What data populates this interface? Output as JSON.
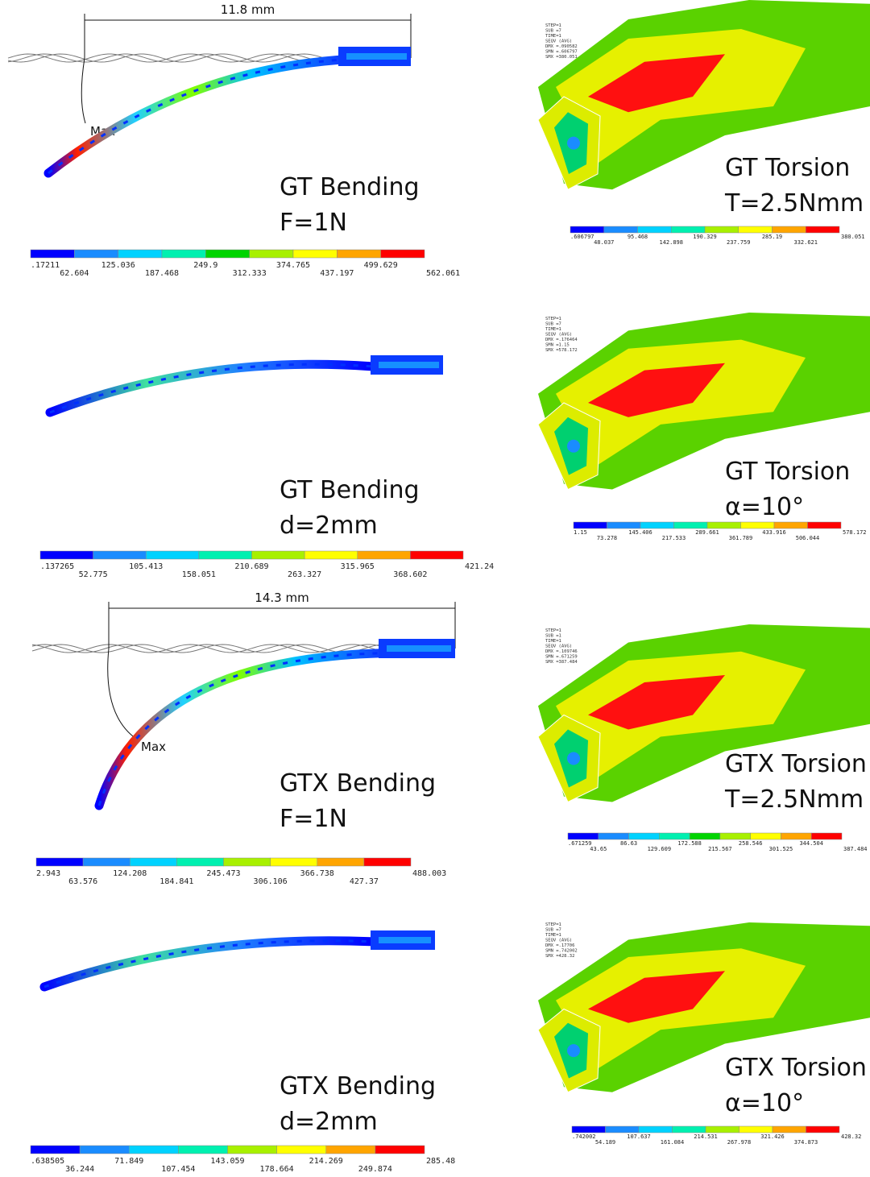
{
  "bending": [
    {
      "title": "GT Bending",
      "load": "F=1N",
      "dimension": "11.8 mm",
      "max_label": "Max",
      "legend": [
        ".17211",
        "62.604",
        "125.036",
        "187.468",
        "249.9",
        "312.333",
        "374.765",
        "437.197",
        "499.629",
        "562.061"
      ]
    },
    {
      "title": "GT Bending",
      "load": "d=2mm",
      "legend": [
        ".137265",
        "52.775",
        "105.413",
        "158.051",
        "210.689",
        "263.327",
        "315.965",
        "368.602",
        "421.24"
      ]
    },
    {
      "title": "GTX Bending",
      "load": "F=1N",
      "dimension": "14.3 mm",
      "max_label": "Max",
      "legend": [
        "2.943",
        "63.576",
        "124.208",
        "184.841",
        "245.473",
        "306.106",
        "366.738",
        "427.37",
        "488.003"
      ]
    },
    {
      "title": "GTX Bending",
      "load": "d=2mm",
      "legend": [
        ".638505",
        "36.244",
        "71.849",
        "107.454",
        "143.059",
        "178.664",
        "214.269",
        "249.874",
        "285.48"
      ]
    }
  ],
  "torsion": [
    {
      "title": "GT Torsion",
      "load": "T=2.5Nmm",
      "header": [
        "STEP=1",
        "SUB =7",
        "TIME=1",
        "SEQV      (AVG)",
        "DMX =.090582",
        "SMN =.606797",
        "SMX =380.051"
      ],
      "legend": [
        ".606797",
        "48.037",
        "95.468",
        "142.898",
        "190.329",
        "237.759",
        "285.19",
        "332.621",
        "380.051"
      ]
    },
    {
      "title": "GT Torsion",
      "load": "α=10°",
      "header": [
        "STEP=1",
        "SUB =7",
        "TIME=1",
        "SEQV      (AVG)",
        "DMX =.176464",
        "SMN =1.15",
        "SMX =578.172"
      ],
      "legend": [
        "1.15",
        "73.278",
        "145.406",
        "217.533",
        "289.661",
        "361.789",
        "433.916",
        "506.044",
        "578.172"
      ]
    },
    {
      "title": "GTX Torsion",
      "load": "T=2.5Nmm",
      "header": [
        "STEP=1",
        "SUB =1",
        "TIME=1",
        "SEQV      (AVG)",
        "DMX =.109746",
        "SMN =.671259",
        "SMX =387.484"
      ],
      "legend": [
        ".671259",
        "43.65",
        "86.63",
        "129.609",
        "172.588",
        "215.567",
        "258.546",
        "301.525",
        "344.504",
        "387.484"
      ]
    },
    {
      "title": "GTX Torsion",
      "load": "α=10°",
      "header": [
        "STEP=1",
        "SUB =7",
        "TIME=1",
        "SEQV      (AVG)",
        "DMX =.17706",
        "SMN =.742002",
        "SMX =428.32"
      ],
      "legend": [
        ".742002",
        "54.189",
        "107.637",
        "161.084",
        "214.531",
        "267.978",
        "321.426",
        "374.873",
        "428.32"
      ]
    }
  ]
}
